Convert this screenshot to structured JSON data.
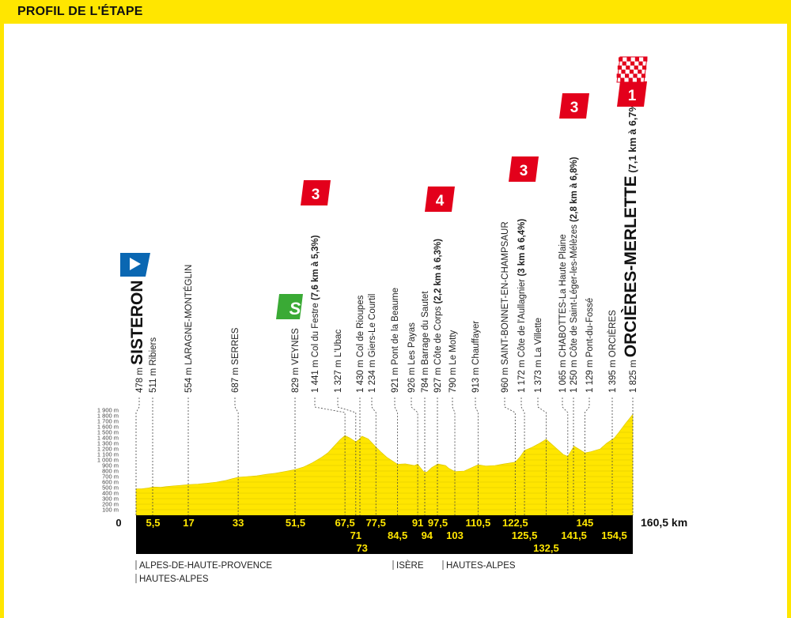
{
  "header": {
    "title": "PROFIL DE L'ÉTAPE"
  },
  "colors": {
    "yellow": "#ffe600",
    "black": "#000000",
    "red": "#e3001b",
    "green": "#3aaa35",
    "blue": "#0a67b2"
  },
  "chart_data": {
    "type": "area",
    "xlabel": "",
    "ylabel": "",
    "x_range": [
      0,
      160.5
    ],
    "y_range": [
      0,
      1900
    ],
    "y_ticks": [
      "1 900 m",
      "1 800 m",
      "1 700 m",
      "1 600 m",
      "1 500 m",
      "1 400 m",
      "1 300 m",
      "1 200 m",
      "1 100 m",
      "1 000 m",
      "900 m",
      "800 m",
      "700 m",
      "600 m",
      "500 m",
      "400 m",
      "300 m",
      "200 m",
      "100 m"
    ],
    "profile": [
      [
        0,
        478
      ],
      [
        2,
        480
      ],
      [
        4,
        495
      ],
      [
        5.5,
        511
      ],
      [
        8,
        505
      ],
      [
        10,
        520
      ],
      [
        13,
        535
      ],
      [
        15,
        545
      ],
      [
        17,
        554
      ],
      [
        20,
        565
      ],
      [
        23,
        580
      ],
      [
        26,
        600
      ],
      [
        29,
        630
      ],
      [
        31,
        660
      ],
      [
        33,
        687
      ],
      [
        36,
        700
      ],
      [
        39,
        715
      ],
      [
        42,
        740
      ],
      [
        45,
        760
      ],
      [
        48,
        790
      ],
      [
        51.5,
        829
      ],
      [
        54,
        870
      ],
      [
        57,
        950
      ],
      [
        60,
        1050
      ],
      [
        62,
        1130
      ],
      [
        64,
        1250
      ],
      [
        66,
        1370
      ],
      [
        67.5,
        1441
      ],
      [
        69,
        1400
      ],
      [
        71,
        1327
      ],
      [
        72,
        1370
      ],
      [
        73,
        1430
      ],
      [
        75,
        1380
      ],
      [
        77.5,
        1234
      ],
      [
        79,
        1150
      ],
      [
        81,
        1050
      ],
      [
        84.5,
        921
      ],
      [
        87,
        930
      ],
      [
        90,
        900
      ],
      [
        91,
        926
      ],
      [
        92,
        850
      ],
      [
        93,
        784
      ],
      [
        94,
        780
      ],
      [
        95.5,
        860
      ],
      [
        97.5,
        927
      ],
      [
        100,
        900
      ],
      [
        101,
        850
      ],
      [
        103,
        790
      ],
      [
        106,
        800
      ],
      [
        108,
        850
      ],
      [
        110.5,
        913
      ],
      [
        113,
        890
      ],
      [
        116,
        900
      ],
      [
        119,
        930
      ],
      [
        122.5,
        960
      ],
      [
        124,
        1050
      ],
      [
        125.5,
        1172
      ],
      [
        128,
        1230
      ],
      [
        130,
        1290
      ],
      [
        132.5,
        1373
      ],
      [
        134,
        1300
      ],
      [
        136,
        1200
      ],
      [
        138,
        1100
      ],
      [
        139.5,
        1065
      ],
      [
        141.5,
        1250
      ],
      [
        143,
        1200
      ],
      [
        145,
        1129
      ],
      [
        147,
        1150
      ],
      [
        150,
        1200
      ],
      [
        152,
        1300
      ],
      [
        154.5,
        1395
      ],
      [
        156,
        1500
      ],
      [
        158,
        1650
      ],
      [
        160.5,
        1825
      ]
    ],
    "km_row1": [
      "5,5",
      "17",
      "33",
      "51,5",
      "67,5",
      "77,5",
      "91",
      "97,5",
      "110,5",
      "122,5",
      "145"
    ],
    "km_row2": [
      "71",
      "84,5",
      "94",
      "103",
      "125,5",
      "141,5",
      "154,5"
    ],
    "km_row3": [
      "73",
      "132,5"
    ],
    "km_start": "0",
    "km_end": "160,5 km",
    "points": [
      {
        "alt": "478 m",
        "name": "SISTERON",
        "km": 0
      },
      {
        "alt": "511 m",
        "name": "Ribiers",
        "km": 5.5
      },
      {
        "alt": "554 m",
        "name": "LARAGNE-MONTÉGLIN",
        "km": 17
      },
      {
        "alt": "687 m",
        "name": "SERRES",
        "km": 33
      },
      {
        "alt": "829 m",
        "name": "VEYNES",
        "km": 51.5
      },
      {
        "alt": "1 441 m",
        "name": "Col du Festre",
        "extra": "(7,6 km à 5,3%)",
        "km": 67.5
      },
      {
        "alt": "1 327 m",
        "name": "L'Ubac",
        "km": 71
      },
      {
        "alt": "1 430 m",
        "name": "Col de Rioupes",
        "km": 73
      },
      {
        "alt": "1 234 m",
        "name": "Giers-Le Courtil",
        "km": 77.5
      },
      {
        "alt": "921 m",
        "name": "Pont de la Beaume",
        "km": 84.5
      },
      {
        "alt": "926 m",
        "name": "Les Payas",
        "km": 91
      },
      {
        "alt": "784 m",
        "name": "Barrage du Sautet",
        "km": 94
      },
      {
        "alt": "927 m",
        "name": "Côte de Corps",
        "extra": "(2,2 km à 6,3%)",
        "km": 97.5
      },
      {
        "alt": "790 m",
        "name": "Le Motty",
        "km": 103
      },
      {
        "alt": "913 m",
        "name": "Chauffayer",
        "km": 110.5
      },
      {
        "alt": "960 m",
        "name": "SAINT-BONNET-EN-CHAMPSAUR",
        "km": 122.5
      },
      {
        "alt": "1 172 m",
        "name": "Côte de l'Aullagnier",
        "extra": "(3 km à 6,4%)",
        "km": 125.5
      },
      {
        "alt": "1 373 m",
        "name": "La Villette",
        "km": 132.5
      },
      {
        "alt": "1 065 m",
        "name": "CHABOTTES-La Haute Plaine",
        "km": 139.5
      },
      {
        "alt": "1 250 m",
        "name": "Côte de Saint-Léger-les-Mélèzes",
        "extra": "(2,8 km à 6,8%)",
        "km": 141.5
      },
      {
        "alt": "1 129 m",
        "name": "Pont-du-Fossé",
        "km": 145
      },
      {
        "alt": "1 395 m",
        "name": "ORCIÈRES",
        "km": 154.5
      },
      {
        "alt": "1 825 m",
        "name": "ORCIÈRES-MERLETTE",
        "extra": "(7,1 km à 6,7%)",
        "km": 160.5
      }
    ],
    "climbs": [
      {
        "category": "3",
        "km": 67.5
      },
      {
        "category": "4",
        "km": 97.5
      },
      {
        "category": "3",
        "km": 125.5
      },
      {
        "category": "3",
        "km": 141.5
      },
      {
        "category": "1",
        "km": 160.5
      }
    ],
    "sprint": {
      "label": "S",
      "km": 51.5
    },
    "regions": [
      {
        "label": "ALPES-DE-HAUTE-PROVENCE"
      },
      {
        "label": "HAUTES-ALPES"
      },
      {
        "label": "ISÈRE"
      },
      {
        "label": "HAUTES-ALPES"
      }
    ]
  }
}
